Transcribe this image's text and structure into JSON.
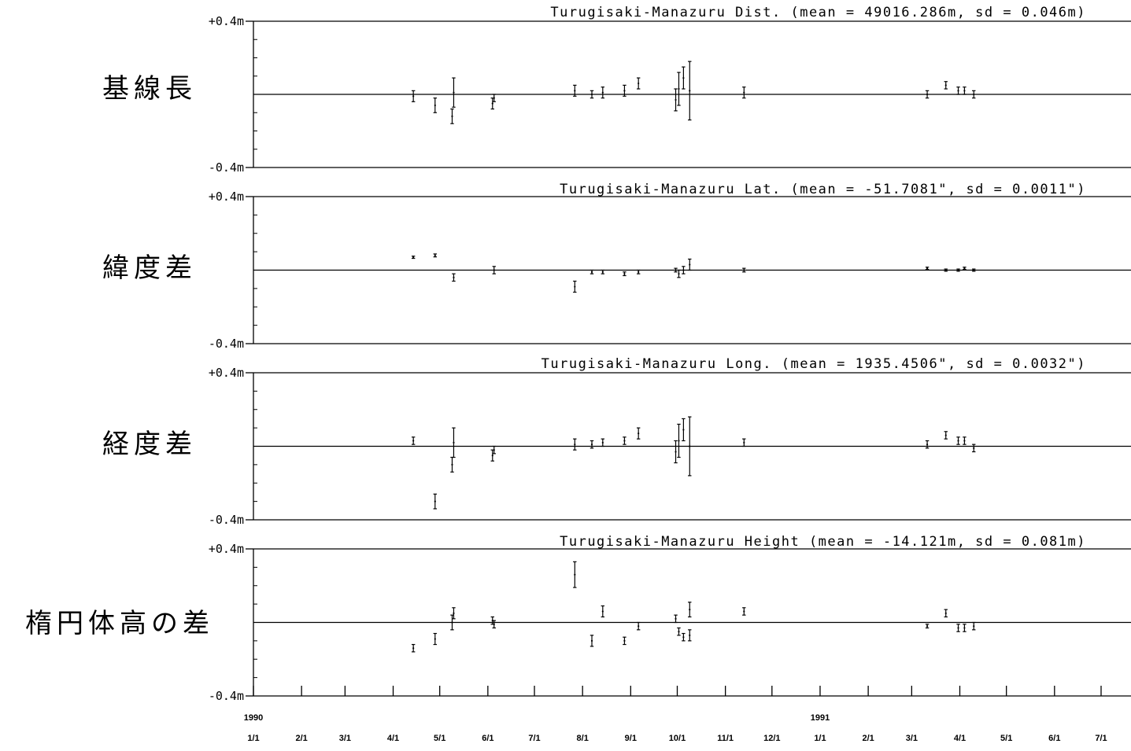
{
  "chart_data": [
    {
      "type": "scatter",
      "label": "基線長",
      "title": "Turugisaki-Manazuru Dist. (mean = 49016.286m, sd = 0.046m)",
      "ytop_label": "+0.4m",
      "ybottom_label": "-0.4m",
      "ylim": [
        -0.4,
        0.4
      ],
      "xlim": [
        "1990-01-01",
        "1991-08-01"
      ],
      "points": [
        {
          "x": "1990-04-14",
          "y": -0.01,
          "err": 0.03
        },
        {
          "x": "1990-04-28",
          "y": -0.06,
          "err": 0.04
        },
        {
          "x": "1990-05-09",
          "y": -0.12,
          "err": 0.04
        },
        {
          "x": "1990-05-10",
          "y": 0.01,
          "err": 0.08
        },
        {
          "x": "1990-06-04",
          "y": -0.05,
          "err": 0.03
        },
        {
          "x": "1990-06-05",
          "y": -0.02,
          "err": 0.02
        },
        {
          "x": "1990-07-27",
          "y": 0.02,
          "err": 0.03
        },
        {
          "x": "1990-08-07",
          "y": 0.0,
          "err": 0.02
        },
        {
          "x": "1990-08-14",
          "y": 0.01,
          "err": 0.03
        },
        {
          "x": "1990-08-28",
          "y": 0.02,
          "err": 0.03
        },
        {
          "x": "1990-09-06",
          "y": 0.06,
          "err": 0.03
        },
        {
          "x": "1990-09-30",
          "y": -0.03,
          "err": 0.06
        },
        {
          "x": "1990-10-02",
          "y": 0.03,
          "err": 0.09
        },
        {
          "x": "1990-10-05",
          "y": 0.09,
          "err": 0.06
        },
        {
          "x": "1990-10-09",
          "y": 0.02,
          "err": 0.16
        },
        {
          "x": "1990-11-13",
          "y": 0.01,
          "err": 0.03
        },
        {
          "x": "1991-03-11",
          "y": 0.0,
          "err": 0.02
        },
        {
          "x": "1991-03-23",
          "y": 0.05,
          "err": 0.02
        },
        {
          "x": "1991-03-31",
          "y": 0.02,
          "err": 0.02
        },
        {
          "x": "1991-04-04",
          "y": 0.02,
          "err": 0.02
        },
        {
          "x": "1991-04-10",
          "y": 0.0,
          "err": 0.02
        }
      ]
    },
    {
      "type": "scatter",
      "label": "緯度差",
      "title": "Turugisaki-Manazuru Lat. (mean = -51.7081\", sd = 0.0011\")",
      "ytop_label": "+0.4m",
      "ybottom_label": "-0.4m",
      "ylim": [
        -0.4,
        0.4
      ],
      "xlim": [
        "1990-01-01",
        "1991-08-01"
      ],
      "points": [
        {
          "x": "1990-04-14",
          "y": 0.07,
          "err": 0.005
        },
        {
          "x": "1990-04-28",
          "y": 0.08,
          "err": 0.008
        },
        {
          "x": "1990-05-10",
          "y": -0.04,
          "err": 0.02
        },
        {
          "x": "1990-06-05",
          "y": 0.0,
          "err": 0.02
        },
        {
          "x": "1990-07-27",
          "y": -0.09,
          "err": 0.03
        },
        {
          "x": "1990-08-07",
          "y": -0.01,
          "err": 0.01
        },
        {
          "x": "1990-08-14",
          "y": -0.01,
          "err": 0.01
        },
        {
          "x": "1990-08-28",
          "y": -0.02,
          "err": 0.01
        },
        {
          "x": "1990-09-06",
          "y": -0.01,
          "err": 0.01
        },
        {
          "x": "1990-09-30",
          "y": 0.0,
          "err": 0.01
        },
        {
          "x": "1990-10-02",
          "y": -0.02,
          "err": 0.02
        },
        {
          "x": "1990-10-05",
          "y": 0.0,
          "err": 0.02
        },
        {
          "x": "1990-10-09",
          "y": 0.03,
          "err": 0.03
        },
        {
          "x": "1990-11-13",
          "y": 0.0,
          "err": 0.01
        },
        {
          "x": "1991-03-11",
          "y": 0.01,
          "err": 0.005
        },
        {
          "x": "1991-03-23",
          "y": 0.0,
          "err": 0.005
        },
        {
          "x": "1991-03-31",
          "y": 0.0,
          "err": 0.005
        },
        {
          "x": "1991-04-04",
          "y": 0.01,
          "err": 0.005
        },
        {
          "x": "1991-04-10",
          "y": 0.0,
          "err": 0.005
        }
      ]
    },
    {
      "type": "scatter",
      "label": "経度差",
      "title": "Turugisaki-Manazuru Long. (mean = 1935.4506\", sd = 0.0032\")",
      "ytop_label": "+0.4m",
      "ybottom_label": "-0.4m",
      "ylim": [
        -0.4,
        0.4
      ],
      "xlim": [
        "1990-01-01",
        "1991-08-01"
      ],
      "points": [
        {
          "x": "1990-04-14",
          "y": 0.03,
          "err": 0.02
        },
        {
          "x": "1990-04-28",
          "y": -0.3,
          "err": 0.04
        },
        {
          "x": "1990-05-09",
          "y": -0.1,
          "err": 0.04
        },
        {
          "x": "1990-05-10",
          "y": 0.02,
          "err": 0.08
        },
        {
          "x": "1990-06-04",
          "y": -0.05,
          "err": 0.03
        },
        {
          "x": "1990-06-05",
          "y": -0.02,
          "err": 0.02
        },
        {
          "x": "1990-07-27",
          "y": 0.01,
          "err": 0.03
        },
        {
          "x": "1990-08-07",
          "y": 0.01,
          "err": 0.02
        },
        {
          "x": "1990-08-14",
          "y": 0.02,
          "err": 0.02
        },
        {
          "x": "1990-08-28",
          "y": 0.03,
          "err": 0.02
        },
        {
          "x": "1990-09-06",
          "y": 0.07,
          "err": 0.03
        },
        {
          "x": "1990-09-30",
          "y": -0.03,
          "err": 0.06
        },
        {
          "x": "1990-10-02",
          "y": 0.03,
          "err": 0.09
        },
        {
          "x": "1990-10-05",
          "y": 0.09,
          "err": 0.06
        },
        {
          "x": "1990-10-09",
          "y": 0.0,
          "err": 0.16
        },
        {
          "x": "1990-11-13",
          "y": 0.02,
          "err": 0.02
        },
        {
          "x": "1991-03-11",
          "y": 0.01,
          "err": 0.02
        },
        {
          "x": "1991-03-23",
          "y": 0.06,
          "err": 0.02
        },
        {
          "x": "1991-03-31",
          "y": 0.03,
          "err": 0.02
        },
        {
          "x": "1991-04-04",
          "y": 0.03,
          "err": 0.02
        },
        {
          "x": "1991-04-10",
          "y": -0.01,
          "err": 0.02
        }
      ]
    },
    {
      "type": "scatter",
      "label": "楕円体高の差",
      "title": "Turugisaki-Manazuru Height (mean = -14.121m, sd = 0.081m)",
      "ytop_label": "+0.4m",
      "ybottom_label": "-0.4m",
      "ylim": [
        -0.4,
        0.4
      ],
      "xlim": [
        "1990-01-01",
        "1991-08-01"
      ],
      "points": [
        {
          "x": "1990-04-14",
          "y": -0.14,
          "err": 0.02
        },
        {
          "x": "1990-04-28",
          "y": -0.09,
          "err": 0.03
        },
        {
          "x": "1990-05-09",
          "y": 0.0,
          "err": 0.04
        },
        {
          "x": "1990-05-10",
          "y": 0.05,
          "err": 0.03
        },
        {
          "x": "1990-06-04",
          "y": 0.01,
          "err": 0.02
        },
        {
          "x": "1990-06-05",
          "y": -0.01,
          "err": 0.02
        },
        {
          "x": "1990-07-27",
          "y": 0.26,
          "err": 0.07
        },
        {
          "x": "1990-08-07",
          "y": -0.1,
          "err": 0.03
        },
        {
          "x": "1990-08-14",
          "y": 0.06,
          "err": 0.03
        },
        {
          "x": "1990-08-28",
          "y": -0.1,
          "err": 0.02
        },
        {
          "x": "1990-09-06",
          "y": -0.02,
          "err": 0.02
        },
        {
          "x": "1990-09-30",
          "y": 0.02,
          "err": 0.02
        },
        {
          "x": "1990-10-02",
          "y": -0.05,
          "err": 0.02
        },
        {
          "x": "1990-10-05",
          "y": -0.08,
          "err": 0.02
        },
        {
          "x": "1990-10-09",
          "y": 0.07,
          "err": 0.04
        },
        {
          "x": "1990-10-09",
          "y": -0.07,
          "err": 0.03
        },
        {
          "x": "1990-11-13",
          "y": 0.06,
          "err": 0.02
        },
        {
          "x": "1991-03-11",
          "y": -0.02,
          "err": 0.01
        },
        {
          "x": "1991-03-23",
          "y": 0.05,
          "err": 0.02
        },
        {
          "x": "1991-03-31",
          "y": -0.03,
          "err": 0.02
        },
        {
          "x": "1991-04-04",
          "y": -0.03,
          "err": 0.02
        },
        {
          "x": "1991-04-10",
          "y": -0.02,
          "err": 0.02
        }
      ]
    }
  ],
  "x_axis": {
    "ticks": [
      "1990-01-01",
      "1990-02-01",
      "1990-03-01",
      "1990-04-01",
      "1990-05-01",
      "1990-06-01",
      "1990-07-01",
      "1990-08-01",
      "1990-09-01",
      "1990-10-01",
      "1990-11-01",
      "1990-12-01",
      "1991-01-01",
      "1991-02-01",
      "1991-03-01",
      "1991-04-01",
      "1991-05-01",
      "1991-06-01",
      "1991-07-01"
    ],
    "tick_labels": [
      "1/1",
      "2/1",
      "3/1",
      "4/1",
      "5/1",
      "6/1",
      "7/1",
      "8/1",
      "9/1",
      "10/1",
      "11/1",
      "12/1",
      "1/1",
      "2/1",
      "3/1",
      "4/1",
      "5/1",
      "6/1",
      "7/1"
    ],
    "year_labels": [
      {
        "date": "1990-01-01",
        "text": "1990"
      },
      {
        "date": "1991-01-01",
        "text": "1991"
      }
    ]
  }
}
